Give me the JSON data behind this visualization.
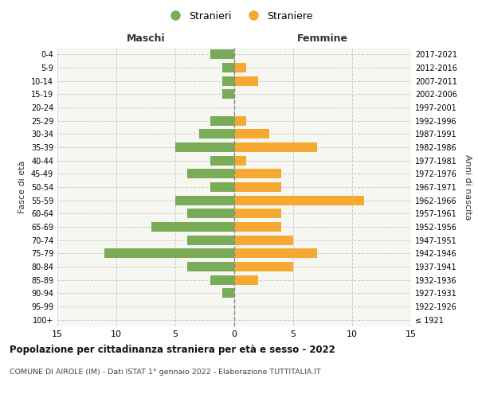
{
  "age_groups": [
    "100+",
    "95-99",
    "90-94",
    "85-89",
    "80-84",
    "75-79",
    "70-74",
    "65-69",
    "60-64",
    "55-59",
    "50-54",
    "45-49",
    "40-44",
    "35-39",
    "30-34",
    "25-29",
    "20-24",
    "15-19",
    "10-14",
    "5-9",
    "0-4"
  ],
  "birth_years": [
    "≤ 1921",
    "1922-1926",
    "1927-1931",
    "1932-1936",
    "1937-1941",
    "1942-1946",
    "1947-1951",
    "1952-1956",
    "1957-1961",
    "1962-1966",
    "1967-1971",
    "1972-1976",
    "1977-1981",
    "1982-1986",
    "1987-1991",
    "1992-1996",
    "1997-2001",
    "2002-2006",
    "2007-2011",
    "2012-2016",
    "2017-2021"
  ],
  "males": [
    0,
    0,
    1,
    2,
    4,
    11,
    4,
    7,
    4,
    5,
    2,
    4,
    2,
    5,
    3,
    2,
    0,
    1,
    1,
    1,
    2
  ],
  "females": [
    0,
    0,
    0,
    2,
    5,
    7,
    5,
    4,
    4,
    11,
    4,
    4,
    1,
    7,
    3,
    1,
    0,
    0,
    2,
    1,
    0
  ],
  "male_color": "#7aab58",
  "female_color": "#f5a832",
  "male_label": "Stranieri",
  "female_label": "Straniere",
  "title": "Popolazione per cittadinanza straniera per età e sesso - 2022",
  "subtitle": "COMUNE DI AIROLE (IM) - Dati ISTAT 1° gennaio 2022 - Elaborazione TUTTITALIA.IT",
  "xlabel_left": "Maschi",
  "xlabel_right": "Femmine",
  "ylabel_left": "Fasce di età",
  "ylabel_right": "Anni di nascita",
  "xlim": 15,
  "bg_color": "#ffffff",
  "grid_color": "#cccccc",
  "face_color": "#f7f7f2"
}
